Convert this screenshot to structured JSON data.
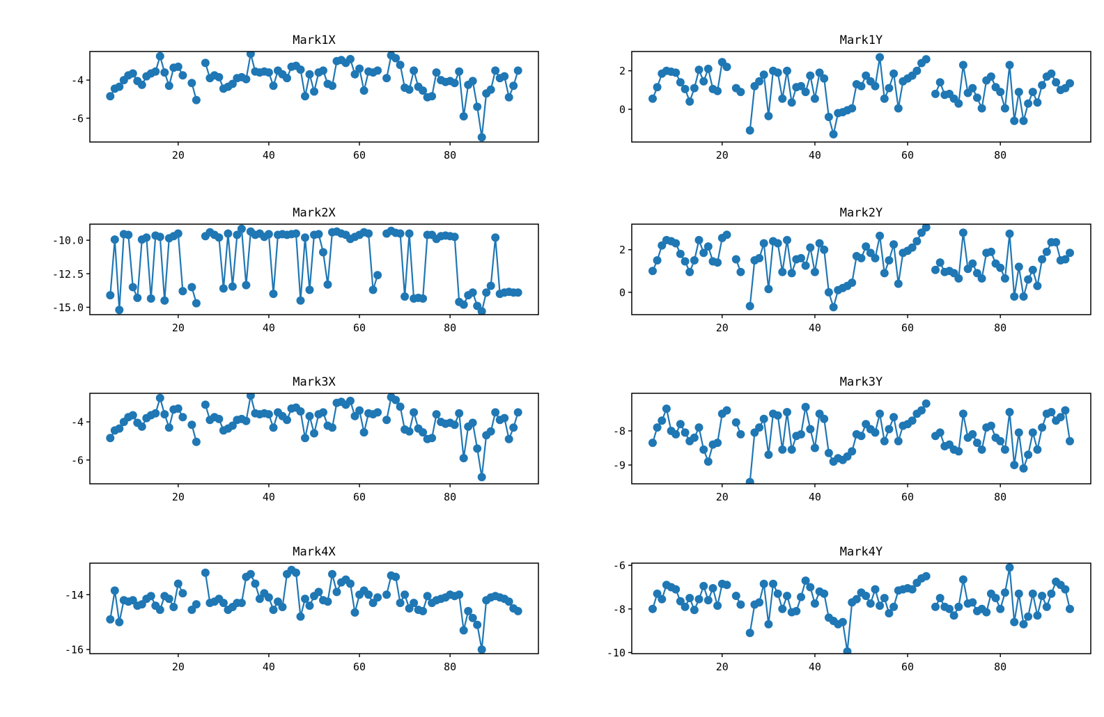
{
  "figure": {
    "background": "#ffffff",
    "series_color": "#1f77b4",
    "text_color": "#000000",
    "marker": "o",
    "marker_radius": 6,
    "line_width": 2.2,
    "xlim": [
      0.5,
      99.5
    ],
    "x_values": [
      5,
      6,
      7,
      8,
      9,
      10,
      11,
      12,
      13,
      14,
      15,
      16,
      17,
      18,
      19,
      20,
      21,
      22,
      23,
      24,
      25,
      26,
      27,
      28,
      29,
      30,
      31,
      32,
      33,
      34,
      35,
      36,
      37,
      38,
      39,
      40,
      41,
      42,
      43,
      44,
      45,
      46,
      47,
      48,
      49,
      50,
      51,
      52,
      53,
      54,
      55,
      56,
      57,
      58,
      59,
      60,
      61,
      62,
      63,
      64,
      65,
      66,
      67,
      68,
      69,
      70,
      71,
      72,
      73,
      74,
      75,
      76,
      77,
      78,
      79,
      80,
      81,
      82,
      83,
      84,
      85,
      86,
      87,
      88,
      89,
      90,
      91,
      92,
      93,
      94,
      95
    ],
    "xticks": [
      20,
      40,
      60,
      80
    ],
    "missing_x": [
      22,
      25,
      65
    ]
  },
  "chart_data": [
    {
      "id": "mark1x",
      "type": "line",
      "title": "Mark1X",
      "ylim": [
        -7.25,
        -2.5
      ],
      "yticks": {
        "values": [
          -4,
          -6
        ],
        "labels": [
          "-4",
          "-6"
        ]
      },
      "y": [
        -4.85,
        -4.45,
        -4.35,
        -4.0,
        -3.75,
        -3.65,
        -4.05,
        -4.25,
        -3.8,
        -3.65,
        -3.55,
        -2.75,
        -3.6,
        -4.3,
        -3.35,
        -3.3,
        -3.75,
        null,
        -4.15,
        -5.05,
        null,
        -3.1,
        -3.9,
        -3.75,
        -3.85,
        -4.45,
        -4.35,
        -4.2,
        -3.9,
        -3.85,
        -3.95,
        -2.62,
        -3.55,
        -3.6,
        -3.55,
        -3.6,
        -4.3,
        -3.5,
        -3.7,
        -3.9,
        -3.3,
        -3.25,
        -3.45,
        -4.85,
        -3.7,
        -4.6,
        -3.6,
        -3.5,
        -4.2,
        -4.3,
        -3.0,
        -2.95,
        -3.1,
        -2.9,
        -3.7,
        -3.4,
        -4.55,
        -3.55,
        -3.6,
        -3.5,
        null,
        -3.9,
        -2.7,
        -2.85,
        -3.2,
        -4.4,
        -4.5,
        -3.5,
        -4.35,
        -4.55,
        -4.9,
        -4.85,
        -3.6,
        -4.0,
        -4.1,
        -4.05,
        -4.15,
        -3.55,
        -5.9,
        -4.25,
        -4.05,
        -5.4,
        -7.0,
        -4.7,
        -4.5,
        -3.5,
        -3.9,
        -3.8,
        -4.9,
        -4.3,
        -3.5
      ]
    },
    {
      "id": "mark1y",
      "type": "line",
      "title": "Mark1Y",
      "ylim": [
        -1.7,
        3.0
      ],
      "yticks": {
        "values": [
          2,
          0
        ],
        "labels": [
          "2",
          "0"
        ]
      },
      "y": [
        0.55,
        1.15,
        1.85,
        2.0,
        1.95,
        1.9,
        1.4,
        1.05,
        0.4,
        1.1,
        2.05,
        1.45,
        2.1,
        1.05,
        0.95,
        2.45,
        2.2,
        null,
        1.1,
        0.9,
        null,
        -1.1,
        1.2,
        1.45,
        1.8,
        -0.35,
        2.0,
        1.9,
        0.55,
        2.0,
        0.35,
        1.15,
        1.2,
        0.9,
        1.75,
        0.55,
        1.9,
        1.6,
        -0.4,
        -1.3,
        -0.2,
        -0.15,
        -0.05,
        0.05,
        1.3,
        1.2,
        1.75,
        1.45,
        1.2,
        2.7,
        0.55,
        1.1,
        1.85,
        0.05,
        1.45,
        1.6,
        1.75,
        2.0,
        2.4,
        2.6,
        null,
        0.8,
        1.4,
        0.75,
        0.8,
        0.55,
        0.3,
        2.3,
        0.85,
        1.1,
        0.6,
        0.05,
        1.5,
        1.7,
        1.15,
        0.9,
        0.05,
        2.3,
        -0.6,
        0.9,
        -0.6,
        0.3,
        0.9,
        0.35,
        1.25,
        1.7,
        1.85,
        1.4,
        1.0,
        1.1,
        1.35
      ]
    },
    {
      "id": "mark2x",
      "type": "line",
      "title": "Mark2X",
      "ylim": [
        -15.55,
        -8.8
      ],
      "yticks": {
        "values": [
          -10.0,
          -12.5,
          -15.0
        ],
        "labels": [
          "-10.0",
          "-12.5",
          "-15.0"
        ]
      },
      "y": [
        -14.1,
        -9.95,
        -15.2,
        -9.55,
        -9.6,
        -13.5,
        -14.3,
        -9.95,
        -9.8,
        -14.35,
        -9.65,
        -9.75,
        -14.5,
        -9.85,
        -9.7,
        -9.5,
        -13.8,
        null,
        -13.5,
        -14.7,
        null,
        -9.7,
        -9.4,
        -9.6,
        -9.8,
        -13.6,
        -9.5,
        -13.45,
        -9.6,
        -9.15,
        -13.35,
        -9.35,
        -9.6,
        -9.5,
        -9.75,
        -9.55,
        -14.0,
        -9.6,
        -9.55,
        -9.6,
        -9.55,
        -9.5,
        -14.5,
        -9.8,
        -13.7,
        -9.6,
        -9.55,
        -10.9,
        -13.3,
        -9.4,
        -9.35,
        -9.5,
        -9.6,
        -9.9,
        -9.75,
        -9.6,
        -9.4,
        -9.5,
        -13.7,
        -12.6,
        null,
        -9.5,
        -9.3,
        -9.45,
        -9.5,
        -14.2,
        -9.5,
        -14.35,
        -14.3,
        -14.35,
        -9.6,
        -9.6,
        -9.9,
        -9.7,
        -9.65,
        -9.7,
        -9.75,
        -14.6,
        -14.8,
        -14.1,
        -13.9,
        -14.9,
        -15.3,
        -13.9,
        -13.4,
        -9.8,
        -14.0,
        -13.9,
        -13.85,
        -13.9,
        -13.9
      ]
    },
    {
      "id": "mark2y",
      "type": "line",
      "title": "Mark2Y",
      "ylim": [
        -1.05,
        3.2
      ],
      "yticks": {
        "values": [
          2,
          0
        ],
        "labels": [
          "2",
          "0"
        ]
      },
      "y": [
        1.0,
        1.5,
        2.2,
        2.45,
        2.4,
        2.3,
        1.8,
        1.45,
        0.95,
        1.5,
        2.45,
        1.85,
        2.15,
        1.45,
        1.4,
        2.55,
        2.7,
        null,
        1.55,
        0.95,
        null,
        -0.65,
        1.5,
        1.6,
        2.3,
        0.15,
        2.4,
        2.3,
        0.95,
        2.45,
        0.9,
        1.55,
        1.6,
        1.25,
        2.1,
        0.95,
        2.3,
        2.0,
        0.0,
        -0.7,
        0.1,
        0.2,
        0.3,
        0.45,
        1.7,
        1.6,
        2.15,
        1.85,
        1.6,
        2.65,
        0.9,
        1.5,
        2.25,
        0.4,
        1.85,
        1.95,
        2.1,
        2.4,
        2.8,
        3.05,
        null,
        1.05,
        1.4,
        0.95,
        1.0,
        0.9,
        0.65,
        2.8,
        1.1,
        1.35,
        0.9,
        0.65,
        1.85,
        1.9,
        1.35,
        1.15,
        0.65,
        2.75,
        -0.2,
        1.2,
        -0.2,
        0.6,
        1.05,
        0.3,
        1.55,
        1.9,
        2.35,
        2.35,
        1.5,
        1.55,
        1.85
      ]
    },
    {
      "id": "mark3x",
      "type": "line",
      "title": "Mark3X",
      "ylim": [
        -7.25,
        -2.5
      ],
      "yticks": {
        "values": [
          -4,
          -6
        ],
        "labels": [
          "-4",
          "-6"
        ]
      },
      "y": [
        -4.85,
        -4.45,
        -4.35,
        -4.0,
        -3.75,
        -3.65,
        -4.05,
        -4.25,
        -3.8,
        -3.65,
        -3.55,
        -2.75,
        -3.6,
        -4.3,
        -3.35,
        -3.3,
        -3.75,
        null,
        -4.15,
        -5.05,
        null,
        -3.1,
        -3.9,
        -3.75,
        -3.85,
        -4.45,
        -4.35,
        -4.2,
        -3.9,
        -3.85,
        -3.95,
        -2.62,
        -3.55,
        -3.6,
        -3.55,
        -3.6,
        -4.3,
        -3.5,
        -3.7,
        -3.9,
        -3.3,
        -3.25,
        -3.45,
        -4.85,
        -3.7,
        -4.6,
        -3.6,
        -3.5,
        -4.2,
        -4.3,
        -3.0,
        -2.95,
        -3.1,
        -2.9,
        -3.7,
        -3.4,
        -4.55,
        -3.55,
        -3.6,
        -3.5,
        null,
        -3.9,
        -2.7,
        -2.85,
        -3.2,
        -4.4,
        -4.5,
        -3.5,
        -4.35,
        -4.55,
        -4.9,
        -4.85,
        -3.6,
        -4.0,
        -4.1,
        -4.05,
        -4.15,
        -3.55,
        -5.9,
        -4.25,
        -4.05,
        -5.4,
        -6.9,
        -4.7,
        -4.5,
        -3.5,
        -3.9,
        -3.8,
        -4.9,
        -4.3,
        -3.5
      ]
    },
    {
      "id": "mark3y",
      "type": "line",
      "title": "Mark3Y",
      "ylim": [
        -9.55,
        -6.9
      ],
      "yticks": {
        "values": [
          -8,
          -9
        ],
        "labels": [
          "-8",
          "-9"
        ]
      },
      "y": [
        -8.35,
        -7.9,
        -7.7,
        -7.35,
        -8.0,
        -8.1,
        -7.8,
        -8.05,
        -8.3,
        -8.2,
        -7.9,
        -8.55,
        -8.9,
        -8.4,
        -8.35,
        -7.5,
        -7.4,
        null,
        -7.75,
        -8.1,
        null,
        -9.5,
        -8.05,
        -7.9,
        -7.65,
        -8.7,
        -7.5,
        -7.55,
        -8.55,
        -7.45,
        -8.55,
        -8.15,
        -8.1,
        -7.3,
        -7.95,
        -8.5,
        -7.5,
        -7.65,
        -8.65,
        -8.9,
        -8.8,
        -8.85,
        -8.75,
        -8.6,
        -8.1,
        -8.15,
        -7.8,
        -7.95,
        -8.05,
        -7.5,
        -8.3,
        -7.95,
        -7.6,
        -8.3,
        -7.85,
        -7.8,
        -7.7,
        -7.5,
        -7.4,
        -7.2,
        null,
        -8.15,
        -8.05,
        -8.45,
        -8.4,
        -8.55,
        -8.6,
        -7.5,
        -8.2,
        -8.1,
        -8.35,
        -8.55,
        -7.9,
        -7.85,
        -8.2,
        -8.3,
        -8.55,
        -7.45,
        -9.0,
        -8.05,
        -9.1,
        -8.7,
        -8.05,
        -8.55,
        -7.9,
        -7.5,
        -7.45,
        -7.7,
        -7.6,
        -7.4,
        -8.3
      ]
    },
    {
      "id": "mark4x",
      "type": "line",
      "title": "Mark4X",
      "ylim": [
        -16.15,
        -12.85
      ],
      "yticks": {
        "values": [
          -14,
          -16
        ],
        "labels": [
          "-14",
          "-16"
        ]
      },
      "y": [
        -14.9,
        -13.85,
        -15.0,
        -14.2,
        -14.25,
        -14.2,
        -14.4,
        -14.35,
        -14.15,
        -14.05,
        -14.4,
        -14.55,
        -14.05,
        -14.15,
        -14.45,
        -13.6,
        -13.95,
        null,
        -14.55,
        -14.35,
        null,
        -13.2,
        -14.3,
        -14.25,
        -14.15,
        -14.3,
        -14.55,
        -14.45,
        -14.3,
        -14.3,
        -13.35,
        -13.25,
        -13.6,
        -14.15,
        -13.95,
        -14.1,
        -14.55,
        -14.25,
        -14.45,
        -13.25,
        -13.1,
        -13.2,
        -14.8,
        -14.15,
        -14.4,
        -14.05,
        -13.9,
        -14.2,
        -14.25,
        -13.25,
        -13.9,
        -13.55,
        -13.45,
        -13.6,
        -14.65,
        -14.0,
        -13.85,
        -14.0,
        -14.3,
        -14.1,
        null,
        -14.0,
        -13.3,
        -13.35,
        -14.3,
        -14.0,
        -14.5,
        -14.3,
        -14.55,
        -14.6,
        -14.05,
        -14.3,
        -14.2,
        -14.15,
        -14.1,
        -14.0,
        -14.05,
        -14.0,
        -15.3,
        -14.6,
        -14.85,
        -15.1,
        -16.0,
        -14.2,
        -14.1,
        -14.05,
        -14.1,
        -14.15,
        -14.25,
        -14.5,
        -14.6
      ]
    },
    {
      "id": "mark4y",
      "type": "line",
      "title": "Mark4Y",
      "ylim": [
        -10.05,
        -5.9
      ],
      "yticks": {
        "values": [
          -6,
          -8,
          -10
        ],
        "labels": [
          "-6",
          "-8",
          "-10"
        ]
      },
      "y": [
        -8.0,
        -7.3,
        -7.55,
        -6.9,
        -7.0,
        -7.1,
        -7.65,
        -7.9,
        -7.5,
        -8.05,
        -7.55,
        -6.95,
        -7.6,
        -7.05,
        -7.85,
        -6.85,
        -6.9,
        null,
        -7.4,
        -7.8,
        null,
        -9.1,
        -7.8,
        -7.7,
        -6.85,
        -8.7,
        -6.85,
        -7.3,
        -8.0,
        -7.4,
        -8.15,
        -8.1,
        -7.45,
        -6.7,
        -7.0,
        -7.75,
        -7.2,
        -7.3,
        -8.4,
        -8.55,
        -8.7,
        -8.6,
        -9.95,
        -7.7,
        -7.55,
        -7.25,
        -7.4,
        -7.75,
        -7.1,
        -7.85,
        -7.5,
        -8.2,
        -7.9,
        -7.15,
        -7.1,
        -7.05,
        -7.1,
        -6.8,
        -6.6,
        -6.5,
        null,
        -7.9,
        -7.5,
        -7.9,
        -8.0,
        -8.3,
        -7.9,
        -6.65,
        -7.75,
        -7.7,
        -8.1,
        -8.0,
        -8.15,
        -7.3,
        -7.5,
        -8.0,
        -7.25,
        -6.1,
        -8.6,
        -7.3,
        -8.7,
        -8.35,
        -7.3,
        -8.3,
        -7.4,
        -7.9,
        -7.3,
        -6.75,
        -6.9,
        -7.1,
        -8.0
      ]
    }
  ]
}
